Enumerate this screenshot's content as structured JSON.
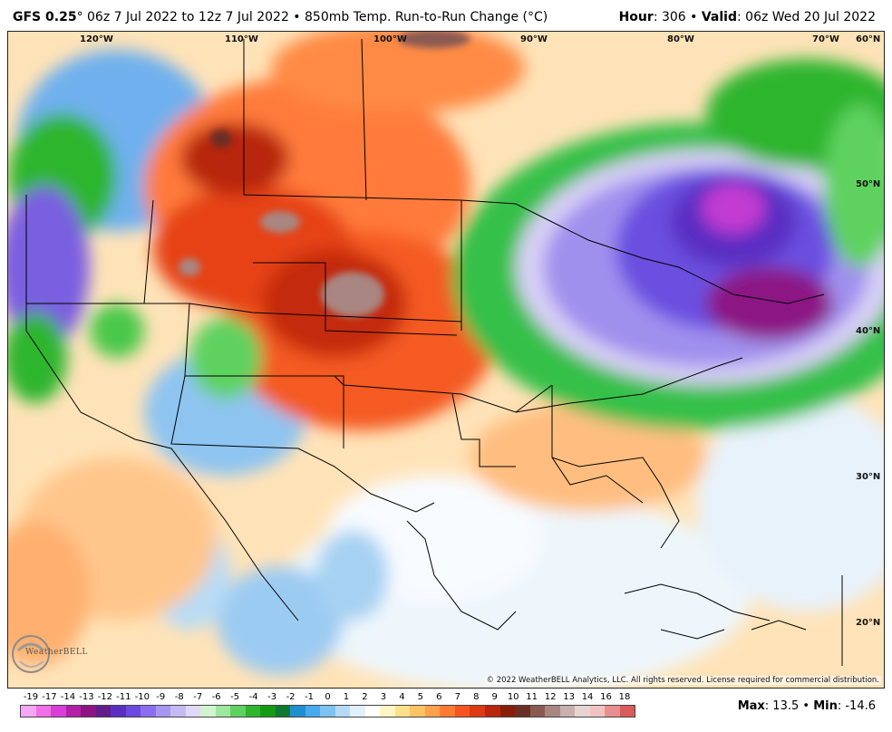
{
  "header": {
    "model": "GFS 0.25",
    "degree_sign": "°",
    "run_info": " 06z 7 Jul 2022 to 12z 7 Jul 2022 • 850mb Temp. Run-to-Run Change (°C)",
    "hour_label": "Hour",
    "hour_value": ": 306 • ",
    "valid_label": "Valid",
    "valid_value": ": 06z Wed 20 Jul 2022"
  },
  "map": {
    "longitude_labels": [
      "120°W",
      "110°W",
      "100°W",
      "90°W",
      "80°W",
      "70°W"
    ],
    "latitude_labels": [
      "60°N",
      "50°N",
      "40°N",
      "30°N",
      "20°N"
    ],
    "copyright": "© 2022 WeatherBELL Analytics, LLC. All rights reserved. License required for commercial distribution.",
    "logo_text": "WeatherBELL"
  },
  "colorbar": {
    "labels": [
      "-19",
      "-17",
      "-14",
      "-13",
      "-12",
      "-11",
      "-10",
      "-9",
      "-8",
      "-7",
      "-6",
      "-5",
      "-4",
      "-3",
      "-2",
      "-1",
      "0",
      "1",
      "2",
      "3",
      "4",
      "5",
      "6",
      "7",
      "8",
      "9",
      "10",
      "11",
      "12",
      "13",
      "14",
      "16",
      "18"
    ],
    "colors": [
      "#f7a6f5",
      "#ef6fe8",
      "#d93ed8",
      "#b21fa8",
      "#8c1484",
      "#611d8a",
      "#5a2ec2",
      "#6c49e0",
      "#8a6ef0",
      "#a795f2",
      "#c5b9f4",
      "#e0d8f8",
      "#d2f3d2",
      "#9ee79e",
      "#5fd15f",
      "#2fb52f",
      "#159a15",
      "#0f7a2f",
      "#1e8fd1",
      "#4aa8ec",
      "#7ec2f2",
      "#b3daf7",
      "#e1f0fb",
      "#ffffff",
      "#fff5c2",
      "#ffe08a",
      "#ffc266",
      "#ffa04a",
      "#ff7b33",
      "#f5551e",
      "#de3a12",
      "#b8260c",
      "#8a1c0a",
      "#6b2e26",
      "#8a5a52",
      "#a98682",
      "#c9b0ad",
      "#e6d4d2",
      "#f2c2c2",
      "#e88e8e",
      "#d85c5c"
    ]
  },
  "stats": {
    "max_label": "Max",
    "max_value": ": 13.5 • ",
    "min_label": "Min",
    "min_value": ": -14.6"
  }
}
